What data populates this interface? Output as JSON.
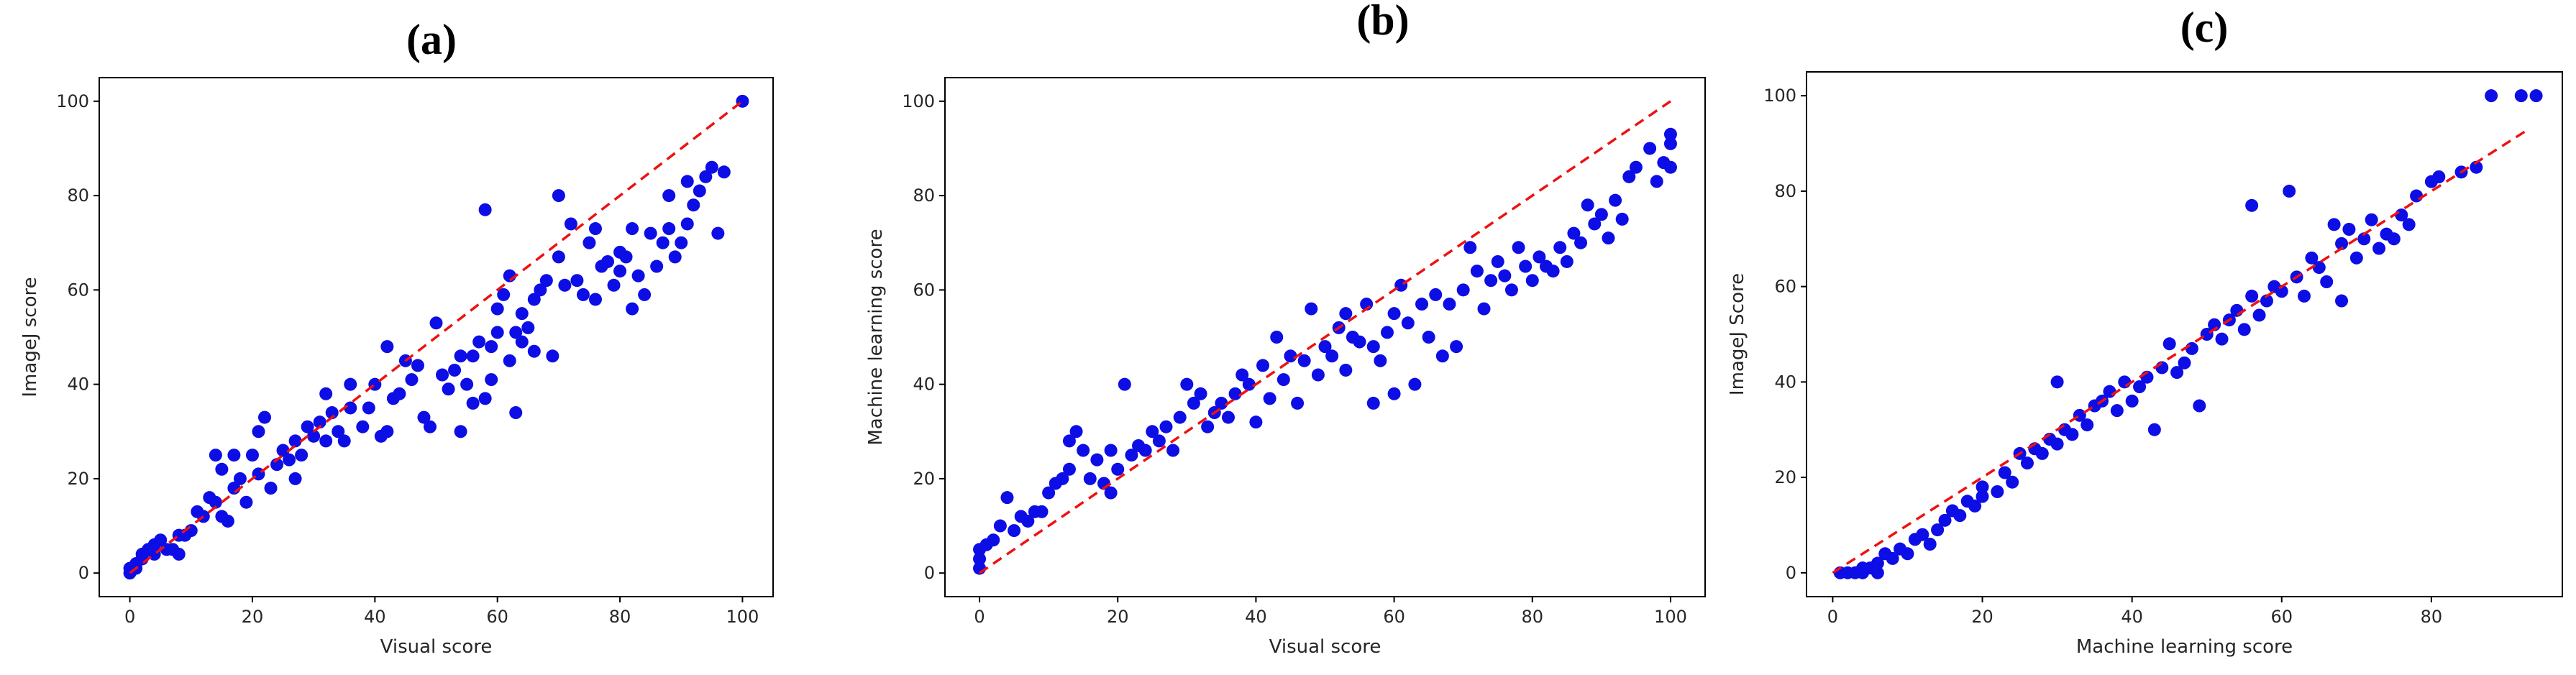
{
  "chart_data": [
    {
      "type": "scatter",
      "panel_label": "(a)",
      "xlabel": "Visual score",
      "ylabel": "ImageJ score",
      "xlim": [
        -5,
        105
      ],
      "ylim": [
        -5,
        105
      ],
      "xticks": [
        0,
        20,
        40,
        60,
        80,
        100
      ],
      "yticks": [
        0,
        20,
        40,
        60,
        80,
        100
      ],
      "marker_color": "#0d0de6",
      "reference_line": {
        "style": "dashed",
        "color": "#ee1111",
        "from": [
          0,
          0
        ],
        "to": [
          100,
          100
        ]
      },
      "grid": false,
      "points": [
        [
          0,
          0
        ],
        [
          0,
          1
        ],
        [
          1,
          1
        ],
        [
          1,
          2
        ],
        [
          2,
          3
        ],
        [
          2,
          4
        ],
        [
          3,
          5
        ],
        [
          4,
          6
        ],
        [
          4,
          4
        ],
        [
          5,
          7
        ],
        [
          6,
          5
        ],
        [
          7,
          5
        ],
        [
          8,
          8
        ],
        [
          8,
          4
        ],
        [
          9,
          8
        ],
        [
          10,
          9
        ],
        [
          11,
          13
        ],
        [
          12,
          12
        ],
        [
          13,
          16
        ],
        [
          14,
          15
        ],
        [
          14,
          25
        ],
        [
          15,
          22
        ],
        [
          15,
          12
        ],
        [
          16,
          11
        ],
        [
          17,
          25
        ],
        [
          17,
          18
        ],
        [
          18,
          20
        ],
        [
          19,
          15
        ],
        [
          20,
          25
        ],
        [
          21,
          30
        ],
        [
          21,
          21
        ],
        [
          22,
          33
        ],
        [
          23,
          18
        ],
        [
          24,
          23
        ],
        [
          25,
          26
        ],
        [
          26,
          24
        ],
        [
          27,
          28
        ],
        [
          27,
          20
        ],
        [
          28,
          25
        ],
        [
          29,
          31
        ],
        [
          30,
          29
        ],
        [
          31,
          32
        ],
        [
          32,
          28
        ],
        [
          32,
          38
        ],
        [
          33,
          34
        ],
        [
          34,
          30
        ],
        [
          35,
          28
        ],
        [
          36,
          35
        ],
        [
          36,
          40
        ],
        [
          38,
          31
        ],
        [
          39,
          35
        ],
        [
          40,
          40
        ],
        [
          41,
          29
        ],
        [
          42,
          48
        ],
        [
          42,
          30
        ],
        [
          43,
          37
        ],
        [
          44,
          38
        ],
        [
          45,
          45
        ],
        [
          46,
          41
        ],
        [
          47,
          44
        ],
        [
          48,
          33
        ],
        [
          49,
          31
        ],
        [
          50,
          53
        ],
        [
          51,
          42
        ],
        [
          52,
          39
        ],
        [
          53,
          43
        ],
        [
          54,
          46
        ],
        [
          54,
          30
        ],
        [
          55,
          40
        ],
        [
          56,
          36
        ],
        [
          56,
          46
        ],
        [
          57,
          49
        ],
        [
          58,
          77
        ],
        [
          58,
          37
        ],
        [
          59,
          41
        ],
        [
          59,
          48
        ],
        [
          60,
          51
        ],
        [
          60,
          56
        ],
        [
          61,
          59
        ],
        [
          62,
          45
        ],
        [
          62,
          63
        ],
        [
          63,
          34
        ],
        [
          63,
          51
        ],
        [
          64,
          49
        ],
        [
          64,
          55
        ],
        [
          65,
          52
        ],
        [
          66,
          58
        ],
        [
          66,
          47
        ],
        [
          67,
          60
        ],
        [
          68,
          62
        ],
        [
          69,
          46
        ],
        [
          70,
          80
        ],
        [
          70,
          67
        ],
        [
          71,
          61
        ],
        [
          72,
          74
        ],
        [
          73,
          62
        ],
        [
          74,
          59
        ],
        [
          75,
          70
        ],
        [
          76,
          58
        ],
        [
          76,
          73
        ],
        [
          77,
          65
        ],
        [
          78,
          66
        ],
        [
          79,
          61
        ],
        [
          80,
          68
        ],
        [
          80,
          64
        ],
        [
          81,
          67
        ],
        [
          82,
          56
        ],
        [
          82,
          73
        ],
        [
          83,
          63
        ],
        [
          84,
          59
        ],
        [
          85,
          72
        ],
        [
          86,
          65
        ],
        [
          87,
          70
        ],
        [
          88,
          80
        ],
        [
          88,
          73
        ],
        [
          89,
          67
        ],
        [
          90,
          70
        ],
        [
          91,
          74
        ],
        [
          91,
          83
        ],
        [
          92,
          78
        ],
        [
          93,
          81
        ],
        [
          94,
          84
        ],
        [
          95,
          86
        ],
        [
          96,
          72
        ],
        [
          97,
          85
        ],
        [
          100,
          100
        ]
      ]
    },
    {
      "type": "scatter",
      "panel_label": "(b)",
      "xlabel": "Visual score",
      "ylabel": "Machine learning score",
      "xlim": [
        -5,
        105
      ],
      "ylim": [
        -5,
        105
      ],
      "xticks": [
        0,
        20,
        40,
        60,
        80,
        100
      ],
      "yticks": [
        0,
        20,
        40,
        60,
        80,
        100
      ],
      "marker_color": "#0d0de6",
      "reference_line": {
        "style": "dashed",
        "color": "#ee1111",
        "from": [
          0,
          0
        ],
        "to": [
          100,
          100
        ]
      },
      "grid": false,
      "points": [
        [
          0,
          1
        ],
        [
          0,
          3
        ],
        [
          0,
          5
        ],
        [
          1,
          6
        ],
        [
          2,
          7
        ],
        [
          3,
          10
        ],
        [
          4,
          16
        ],
        [
          5,
          9
        ],
        [
          6,
          12
        ],
        [
          7,
          11
        ],
        [
          8,
          13
        ],
        [
          9,
          13
        ],
        [
          10,
          17
        ],
        [
          11,
          19
        ],
        [
          12,
          20
        ],
        [
          13,
          22
        ],
        [
          13,
          28
        ],
        [
          14,
          30
        ],
        [
          15,
          26
        ],
        [
          16,
          20
        ],
        [
          17,
          24
        ],
        [
          18,
          19
        ],
        [
          19,
          17
        ],
        [
          19,
          26
        ],
        [
          20,
          22
        ],
        [
          21,
          40
        ],
        [
          22,
          25
        ],
        [
          23,
          27
        ],
        [
          24,
          26
        ],
        [
          25,
          30
        ],
        [
          26,
          28
        ],
        [
          27,
          31
        ],
        [
          28,
          26
        ],
        [
          29,
          33
        ],
        [
          30,
          40
        ],
        [
          31,
          36
        ],
        [
          32,
          38
        ],
        [
          33,
          31
        ],
        [
          34,
          34
        ],
        [
          35,
          36
        ],
        [
          36,
          33
        ],
        [
          37,
          38
        ],
        [
          38,
          42
        ],
        [
          39,
          40
        ],
        [
          40,
          32
        ],
        [
          41,
          44
        ],
        [
          42,
          37
        ],
        [
          43,
          50
        ],
        [
          44,
          41
        ],
        [
          45,
          46
        ],
        [
          46,
          36
        ],
        [
          47,
          45
        ],
        [
          48,
          56
        ],
        [
          49,
          42
        ],
        [
          50,
          48
        ],
        [
          51,
          46
        ],
        [
          52,
          52
        ],
        [
          53,
          55
        ],
        [
          53,
          43
        ],
        [
          54,
          50
        ],
        [
          55,
          49
        ],
        [
          56,
          57
        ],
        [
          57,
          36
        ],
        [
          57,
          48
        ],
        [
          58,
          45
        ],
        [
          59,
          51
        ],
        [
          60,
          55
        ],
        [
          60,
          38
        ],
        [
          61,
          61
        ],
        [
          62,
          53
        ],
        [
          63,
          40
        ],
        [
          64,
          57
        ],
        [
          65,
          50
        ],
        [
          66,
          59
        ],
        [
          67,
          46
        ],
        [
          68,
          57
        ],
        [
          69,
          48
        ],
        [
          70,
          60
        ],
        [
          71,
          69
        ],
        [
          72,
          64
        ],
        [
          73,
          56
        ],
        [
          74,
          62
        ],
        [
          75,
          66
        ],
        [
          76,
          63
        ],
        [
          77,
          60
        ],
        [
          78,
          69
        ],
        [
          79,
          65
        ],
        [
          80,
          62
        ],
        [
          81,
          67
        ],
        [
          82,
          65
        ],
        [
          83,
          64
        ],
        [
          84,
          69
        ],
        [
          85,
          66
        ],
        [
          86,
          72
        ],
        [
          87,
          70
        ],
        [
          88,
          78
        ],
        [
          89,
          74
        ],
        [
          90,
          76
        ],
        [
          91,
          71
        ],
        [
          92,
          79
        ],
        [
          93,
          75
        ],
        [
          94,
          84
        ],
        [
          95,
          86
        ],
        [
          97,
          90
        ],
        [
          98,
          83
        ],
        [
          99,
          87
        ],
        [
          100,
          86
        ],
        [
          100,
          91
        ],
        [
          100,
          93
        ]
      ]
    },
    {
      "type": "scatter",
      "panel_label": "(c)",
      "xlabel": "Machine learning score",
      "ylabel": "ImageJ Score",
      "xlim": [
        -3.5,
        97.5
      ],
      "ylim": [
        -5,
        105
      ],
      "xticks": [
        0,
        20,
        40,
        60,
        80
      ],
      "yticks": [
        0,
        20,
        40,
        60,
        80,
        100
      ],
      "marker_color": "#0d0de6",
      "reference_line": {
        "style": "dashed",
        "color": "#ee1111",
        "from": [
          0,
          0
        ],
        "to": [
          93,
          93
        ]
      },
      "grid": false,
      "points": [
        [
          1,
          0
        ],
        [
          2,
          0
        ],
        [
          3,
          0
        ],
        [
          4,
          0
        ],
        [
          4,
          1
        ],
        [
          5,
          1
        ],
        [
          6,
          0
        ],
        [
          6,
          2
        ],
        [
          7,
          4
        ],
        [
          8,
          3
        ],
        [
          9,
          5
        ],
        [
          10,
          4
        ],
        [
          11,
          7
        ],
        [
          12,
          8
        ],
        [
          13,
          6
        ],
        [
          14,
          9
        ],
        [
          15,
          11
        ],
        [
          16,
          13
        ],
        [
          17,
          12
        ],
        [
          18,
          15
        ],
        [
          19,
          14
        ],
        [
          20,
          16
        ],
        [
          20,
          18
        ],
        [
          22,
          17
        ],
        [
          23,
          21
        ],
        [
          24,
          19
        ],
        [
          25,
          25
        ],
        [
          26,
          23
        ],
        [
          27,
          26
        ],
        [
          28,
          25
        ],
        [
          29,
          28
        ],
        [
          30,
          40
        ],
        [
          30,
          27
        ],
        [
          31,
          30
        ],
        [
          32,
          29
        ],
        [
          33,
          33
        ],
        [
          34,
          31
        ],
        [
          35,
          35
        ],
        [
          36,
          36
        ],
        [
          37,
          38
        ],
        [
          38,
          34
        ],
        [
          39,
          40
        ],
        [
          40,
          36
        ],
        [
          41,
          39
        ],
        [
          42,
          41
        ],
        [
          43,
          30
        ],
        [
          44,
          43
        ],
        [
          45,
          48
        ],
        [
          46,
          42
        ],
        [
          47,
          44
        ],
        [
          48,
          47
        ],
        [
          49,
          35
        ],
        [
          50,
          50
        ],
        [
          51,
          52
        ],
        [
          52,
          49
        ],
        [
          53,
          53
        ],
        [
          54,
          55
        ],
        [
          55,
          51
        ],
        [
          56,
          58
        ],
        [
          56,
          77
        ],
        [
          57,
          54
        ],
        [
          58,
          57
        ],
        [
          59,
          60
        ],
        [
          60,
          59
        ],
        [
          61,
          80
        ],
        [
          62,
          62
        ],
        [
          63,
          58
        ],
        [
          64,
          66
        ],
        [
          65,
          64
        ],
        [
          66,
          61
        ],
        [
          67,
          73
        ],
        [
          68,
          69
        ],
        [
          68,
          57
        ],
        [
          69,
          72
        ],
        [
          70,
          66
        ],
        [
          71,
          70
        ],
        [
          72,
          74
        ],
        [
          73,
          68
        ],
        [
          74,
          71
        ],
        [
          75,
          70
        ],
        [
          76,
          75
        ],
        [
          77,
          73
        ],
        [
          78,
          79
        ],
        [
          80,
          82
        ],
        [
          81,
          83
        ],
        [
          84,
          84
        ],
        [
          86,
          85
        ],
        [
          88,
          100
        ],
        [
          92,
          100
        ],
        [
          94,
          100
        ]
      ]
    }
  ]
}
